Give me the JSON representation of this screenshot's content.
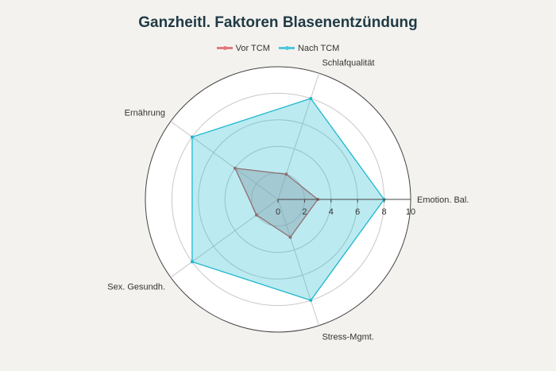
{
  "chart_data": {
    "type": "radar",
    "title": "Ganzheitl. Faktoren Blasenentzündung",
    "categories": [
      "Emotion. Bal.",
      "Schlafqualität",
      "Ernährung",
      "Sex. Gesundh.",
      "Stress-Mgmt."
    ],
    "series": [
      {
        "name": "Vor TCM",
        "values": [
          3,
          2,
          4,
          2,
          3
        ],
        "color": "#c0504d",
        "fill": "rgba(180,150,160,0.45)"
      },
      {
        "name": "Nach TCM",
        "values": [
          8,
          8,
          8,
          8,
          8
        ],
        "color": "#1fb8cd",
        "fill": "rgba(31,184,205,0.3)"
      }
    ],
    "radial_range": [
      0,
      10
    ],
    "radial_ticks": [
      "0",
      "2",
      "4",
      "6",
      "8",
      "10"
    ],
    "legend_position": "top",
    "grid": true
  }
}
